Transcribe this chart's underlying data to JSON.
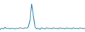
{
  "values": [
    6,
    9,
    7,
    11,
    8,
    9,
    7,
    9,
    8,
    7,
    9,
    8,
    10,
    9,
    8,
    10,
    9,
    12,
    28,
    65,
    38,
    12,
    7,
    9,
    6,
    10,
    8,
    7,
    10,
    8,
    9,
    7,
    10,
    8,
    9,
    7,
    10,
    8,
    9,
    7,
    10,
    8,
    9,
    7,
    10,
    8,
    9,
    7,
    10,
    8,
    9,
    7
  ],
  "line_color": "#2e8bc4",
  "background_color": "#ffffff",
  "ylim_min": 0,
  "ylim_max": 75,
  "linewidth": 0.8
}
